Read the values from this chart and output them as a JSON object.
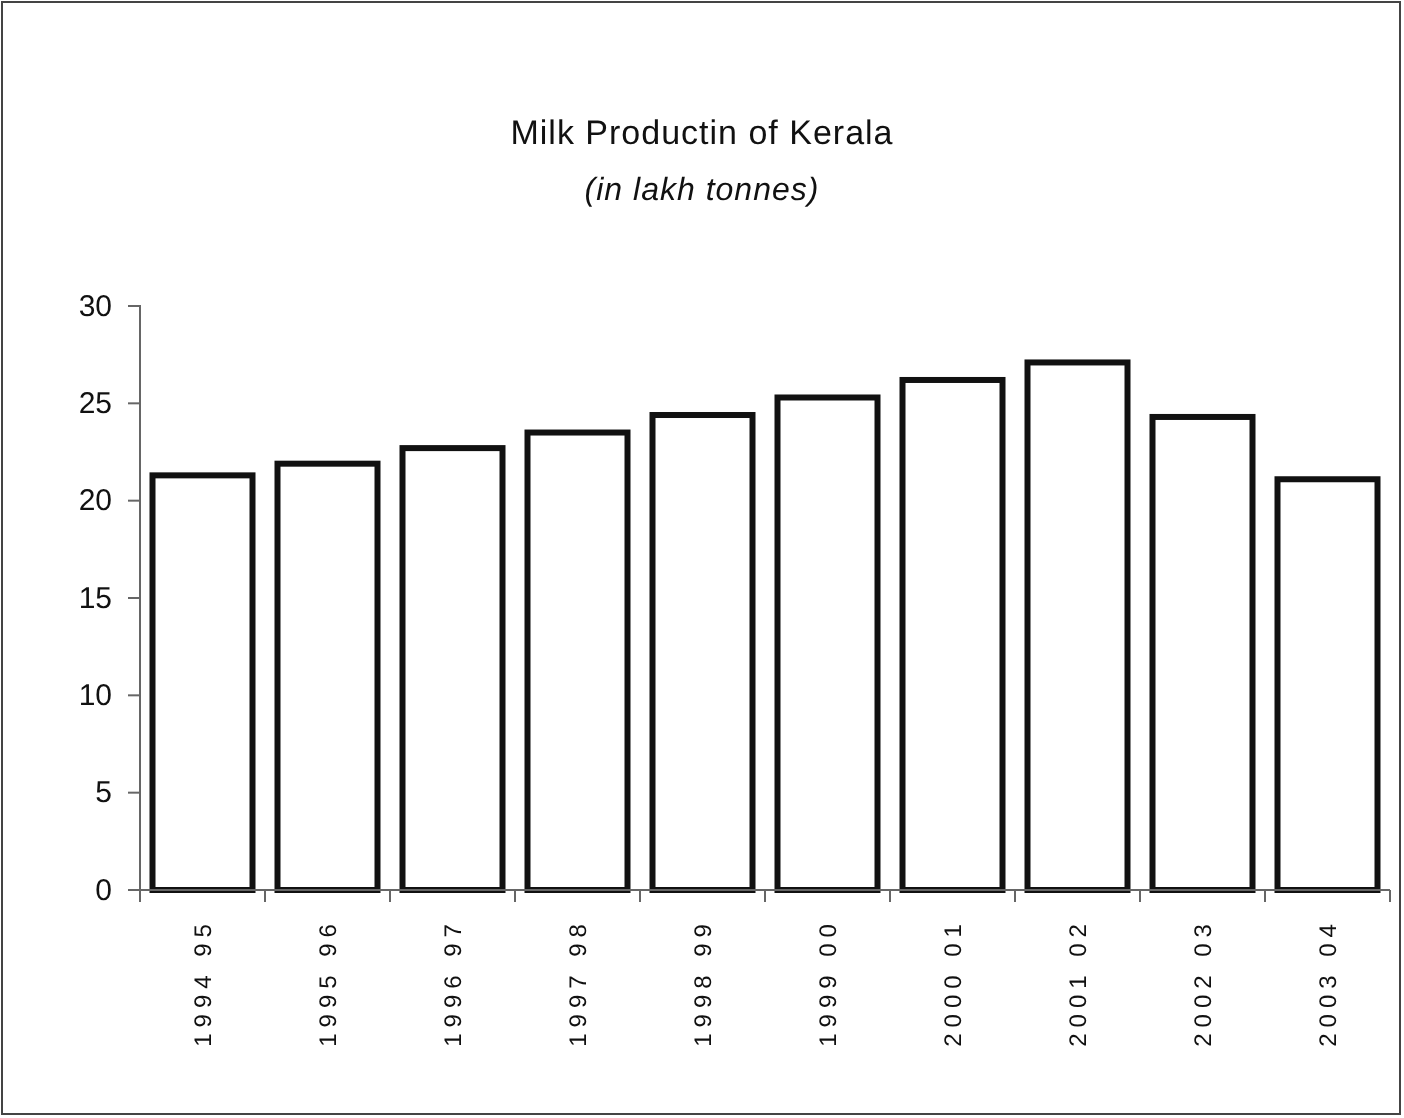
{
  "chart_data": {
    "type": "bar",
    "title": "Milk Productin of Kerala",
    "subtitle": "(in lakh tonnes)",
    "categories": [
      "1994 95",
      "1995 96",
      "1996 97",
      "1997 98",
      "1998 99",
      "1999 00",
      "2000 01",
      "2001 02",
      "2002 03",
      "2003 04"
    ],
    "values": [
      21.3,
      21.9,
      22.7,
      23.5,
      24.4,
      25.3,
      26.2,
      27.1,
      24.3,
      21.1
    ],
    "color": "#ffffff",
    "ylim": [
      0,
      30
    ],
    "yticks": [
      0,
      5,
      10,
      15,
      20,
      25,
      30
    ],
    "grid": false
  }
}
